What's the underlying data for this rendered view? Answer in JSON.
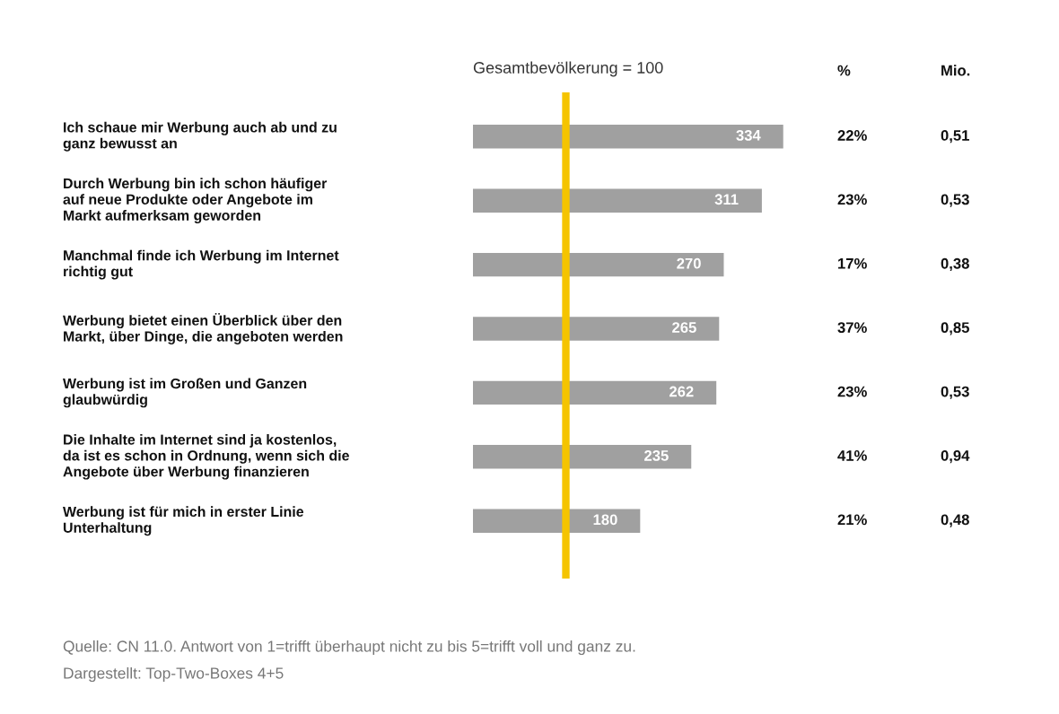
{
  "chart_data": [
    {
      "type": "bar",
      "orientation": "horizontal",
      "categories": [
        "Ich schaue mir Werbung auch ab und zu\nganz bewusst an",
        "Durch Werbung bin ich schon häufiger\nauf neue Produkte oder Angebote im\nMarkt aufmerksam geworden",
        "Manchmal finde ich Werbung im Internet\nrichtig gut",
        "Werbung bietet einen Überblick über den\nMarkt, über Dinge, die angeboten werden",
        "Werbung ist im Großen und Ganzen\nglaubwürdig",
        "Die Inhalte im Internet sind ja kostenlos,\nda ist es schon in Ordnung, wenn sich die\nAngebote über Werbung finanzieren",
        "Werbung ist für mich in erster Linie\nUnterhaltung"
      ],
      "values": [
        334,
        311,
        270,
        265,
        262,
        235,
        180
      ],
      "color": "#a0a0a0",
      "data_labels": true,
      "ref_lines": [
        {
          "axis": "x",
          "value": 100,
          "label": "Gesamtbevölkerung = 100",
          "color": "#f5c400"
        }
      ],
      "annotations": [
        "Quelle: CN 11.0. Antwort von 1=trifft überhaupt nicht zu bis 5=trifft voll und ganz zu.",
        "Dargestellt: Top-Two-Boxes 4+5"
      ]
    },
    {
      "type": "other",
      "annotations": [
        "%",
        "22%",
        "23%",
        "17%",
        "37%",
        "23%",
        "41%",
        "21%",
        "Mio.",
        "0,51",
        "0,53",
        "0,38",
        "0,85",
        "0,53",
        "0,94",
        "0,48"
      ]
    }
  ]
}
